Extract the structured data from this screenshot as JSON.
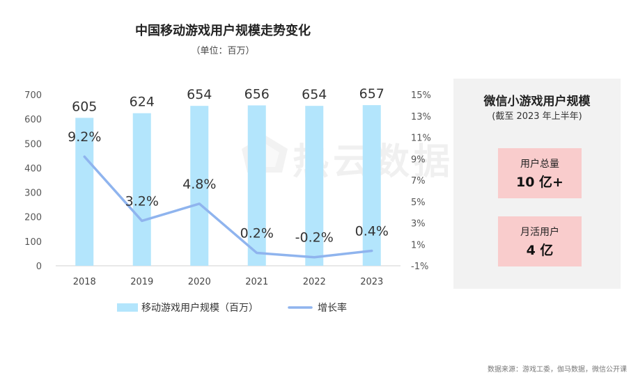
{
  "title": "中国移动游戏用户规模走势变化",
  "subtitle": "（单位：百万）",
  "watermark": "热云数据",
  "chart_data": {
    "type": "bar",
    "categories": [
      "2018",
      "2019",
      "2020",
      "2021",
      "2022",
      "2023"
    ],
    "series": [
      {
        "name": "移动游戏用户规模（百万）",
        "type": "bar",
        "axis": "left",
        "values": [
          605,
          624,
          654,
          656,
          654,
          657
        ],
        "labels": [
          "605",
          "624",
          "654",
          "656",
          "654",
          "657"
        ],
        "color": "#b3e5fc"
      },
      {
        "name": "增长率",
        "type": "line",
        "axis": "right",
        "values": [
          9.2,
          3.2,
          4.8,
          0.2,
          -0.2,
          0.4
        ],
        "labels": [
          "9.2%",
          "3.2%",
          "4.8%",
          "0.2%",
          "-0.2%",
          "0.4%"
        ],
        "color": "#8fb4ee"
      }
    ],
    "y_left": {
      "ticks": [
        "0",
        "100",
        "200",
        "300",
        "400",
        "500",
        "600",
        "700"
      ],
      "range": [
        0,
        700
      ]
    },
    "y_right": {
      "ticks": [
        "-1%",
        "1%",
        "3%",
        "5%",
        "7%",
        "9%",
        "11%",
        "13%",
        "15%"
      ],
      "range": [
        -1,
        15
      ]
    },
    "legend_position": "bottom"
  },
  "panel": {
    "title": "微信小游戏用户规模",
    "subtitle": "(截至 2023 年上半年)",
    "stats": [
      {
        "label": "用户总量",
        "value": "10 亿+"
      },
      {
        "label": "月活用户",
        "value": "4 亿"
      }
    ],
    "box_color": "#f9cccc",
    "background": "#f2f2f2"
  },
  "source": "数据来源：游戏工委，伽马数据，微信公开课"
}
